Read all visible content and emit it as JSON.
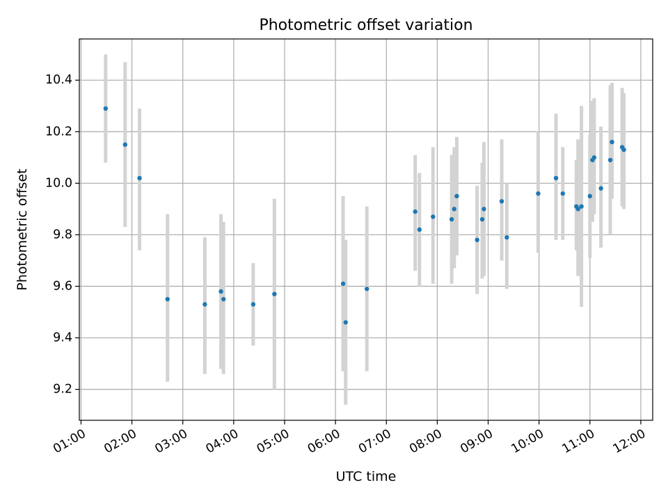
{
  "chart_data": {
    "type": "scatter",
    "title": "Photometric offset variation",
    "xlabel": "UTC time",
    "ylabel": "Photometric offset",
    "xlim": [
      "00:58",
      "12:14"
    ],
    "ylim": [
      9.08,
      10.56
    ],
    "x_ticks": [
      "01:00",
      "02:00",
      "03:00",
      "04:00",
      "05:00",
      "06:00",
      "07:00",
      "08:00",
      "09:00",
      "10:00",
      "11:00",
      "12:00"
    ],
    "y_ticks": [
      9.2,
      9.4,
      9.6,
      9.8,
      10.0,
      10.2,
      10.4
    ],
    "grid": true,
    "marker_color": "#1f77b4",
    "errorbar_color": "#d3d3d3",
    "points": [
      {
        "t": "01:29",
        "y": 10.29,
        "lo": 10.08,
        "hi": 10.5
      },
      {
        "t": "01:52",
        "y": 10.15,
        "lo": 9.83,
        "hi": 10.47
      },
      {
        "t": "02:09",
        "y": 10.02,
        "lo": 9.74,
        "hi": 10.29
      },
      {
        "t": "02:42",
        "y": 9.55,
        "lo": 9.23,
        "hi": 9.88
      },
      {
        "t": "03:26",
        "y": 9.53,
        "lo": 9.26,
        "hi": 9.79
      },
      {
        "t": "03:45",
        "y": 9.58,
        "lo": 9.28,
        "hi": 9.88
      },
      {
        "t": "03:48",
        "y": 9.55,
        "lo": 9.26,
        "hi": 9.85
      },
      {
        "t": "04:23",
        "y": 9.53,
        "lo": 9.37,
        "hi": 9.69
      },
      {
        "t": "04:48",
        "y": 9.57,
        "lo": 9.2,
        "hi": 9.94
      },
      {
        "t": "06:09",
        "y": 9.61,
        "lo": 9.27,
        "hi": 9.95
      },
      {
        "t": "06:12",
        "y": 9.46,
        "lo": 9.14,
        "hi": 9.78
      },
      {
        "t": "06:37",
        "y": 9.59,
        "lo": 9.27,
        "hi": 9.91
      },
      {
        "t": "07:34",
        "y": 9.89,
        "lo": 9.66,
        "hi": 10.11
      },
      {
        "t": "07:39",
        "y": 9.82,
        "lo": 9.6,
        "hi": 10.04
      },
      {
        "t": "07:55",
        "y": 9.87,
        "lo": 9.61,
        "hi": 10.14
      },
      {
        "t": "08:17",
        "y": 9.86,
        "lo": 9.61,
        "hi": 10.11
      },
      {
        "t": "08:20",
        "y": 9.9,
        "lo": 9.67,
        "hi": 10.14
      },
      {
        "t": "08:23",
        "y": 9.95,
        "lo": 9.72,
        "hi": 10.18
      },
      {
        "t": "08:47",
        "y": 9.78,
        "lo": 9.57,
        "hi": 9.99
      },
      {
        "t": "08:53",
        "y": 9.86,
        "lo": 9.63,
        "hi": 10.08
      },
      {
        "t": "08:55",
        "y": 9.9,
        "lo": 9.64,
        "hi": 10.16
      },
      {
        "t": "09:16",
        "y": 9.93,
        "lo": 9.7,
        "hi": 10.17
      },
      {
        "t": "09:22",
        "y": 9.79,
        "lo": 9.59,
        "hi": 10.0
      },
      {
        "t": "09:59",
        "y": 9.96,
        "lo": 9.73,
        "hi": 10.2
      },
      {
        "t": "10:20",
        "y": 10.02,
        "lo": 9.78,
        "hi": 10.27
      },
      {
        "t": "10:28",
        "y": 9.96,
        "lo": 9.78,
        "hi": 10.14
      },
      {
        "t": "10:44",
        "y": 9.91,
        "lo": 9.74,
        "hi": 10.09
      },
      {
        "t": "10:46",
        "y": 9.9,
        "lo": 9.64,
        "hi": 10.17
      },
      {
        "t": "10:50",
        "y": 9.91,
        "lo": 9.52,
        "hi": 10.3
      },
      {
        "t": "11:00",
        "y": 9.95,
        "lo": 9.71,
        "hi": 10.19
      },
      {
        "t": "11:03",
        "y": 10.09,
        "lo": 9.85,
        "hi": 10.32
      },
      {
        "t": "11:05",
        "y": 10.1,
        "lo": 9.88,
        "hi": 10.33
      },
      {
        "t": "11:13",
        "y": 9.98,
        "lo": 9.75,
        "hi": 10.22
      },
      {
        "t": "11:24",
        "y": 10.09,
        "lo": 9.8,
        "hi": 10.38
      },
      {
        "t": "11:26",
        "y": 10.16,
        "lo": 9.94,
        "hi": 10.39
      },
      {
        "t": "11:38",
        "y": 10.14,
        "lo": 9.91,
        "hi": 10.37
      },
      {
        "t": "11:40",
        "y": 10.13,
        "lo": 9.9,
        "hi": 10.35
      }
    ]
  }
}
